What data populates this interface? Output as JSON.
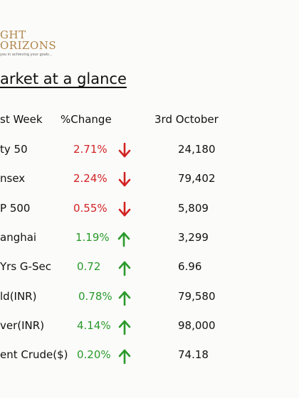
{
  "brand": {
    "line1": "GHT",
    "line2": "ORIZONS",
    "tagline": "you in achieving your goals..."
  },
  "title": "arket at a glance",
  "table": {
    "headers": [
      "st Week",
      "%Change",
      "3rd October"
    ],
    "rows": [
      {
        "name": "ty 50",
        "change": "2.71%",
        "direction": "down",
        "value": "24,180"
      },
      {
        "name": "nsex",
        "change": "2.24%",
        "direction": "down",
        "value": "79,402"
      },
      {
        "name": "P 500",
        "change": "0.55%",
        "direction": "down",
        "value": "5,809"
      },
      {
        "name": "anghai",
        "change": "1.19%",
        "direction": "up",
        "value": "3,299"
      },
      {
        "name": "Yrs G-Sec",
        "change": "0.72",
        "direction": "up",
        "value": "6.96"
      },
      {
        "name": "ld(INR)",
        "change": "0.78%",
        "direction": "up",
        "value": "79,580"
      },
      {
        "name": "ver(INR)",
        "change": "4.14%",
        "direction": "up",
        "value": "98,000"
      },
      {
        "name": "ent Crude($)",
        "change": "0.20%",
        "direction": "up",
        "value": "74.18"
      }
    ]
  },
  "colors": {
    "down": "#d22222",
    "up": "#2a9a2a",
    "brand": "#b08448"
  },
  "icons": {
    "down": "arrow-down-icon",
    "up": "arrow-up-icon"
  }
}
